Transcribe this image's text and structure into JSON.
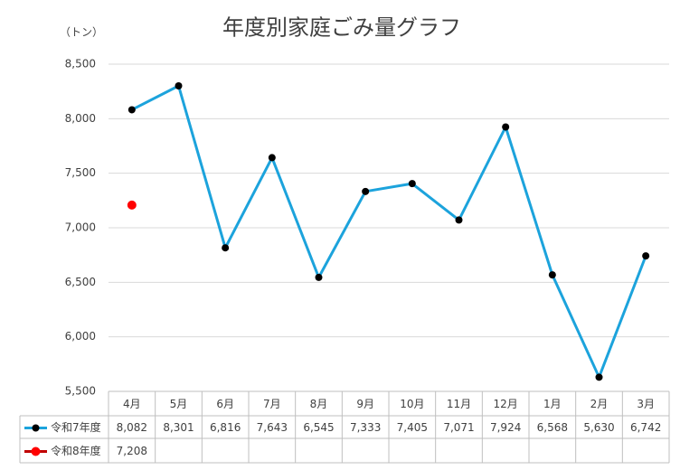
{
  "chart_data": {
    "type": "line",
    "title": "年度別家庭ごみ量グラフ",
    "y_label": "（トン）",
    "categories": [
      "4月",
      "5月",
      "6月",
      "7月",
      "8月",
      "9月",
      "10月",
      "11月",
      "12月",
      "1月",
      "2月",
      "3月"
    ],
    "series": [
      {
        "name": "令和7年度",
        "color": "#1ca3dc",
        "marker_color": "#000000",
        "values": [
          8082,
          8301,
          6816,
          7643,
          6545,
          7333,
          7405,
          7071,
          7924,
          6568,
          5630,
          6742
        ],
        "value_labels": [
          "8,082",
          "8,301",
          "6,816",
          "7,643",
          "6,545",
          "7,333",
          "7,405",
          "7,071",
          "7,924",
          "6,568",
          "5,630",
          "6,742"
        ]
      },
      {
        "name": "令和8年度",
        "color": "#c00000",
        "marker_color": "#ff0000",
        "values": [
          7208,
          null,
          null,
          null,
          null,
          null,
          null,
          null,
          null,
          null,
          null,
          null
        ],
        "value_labels": [
          "7,208",
          null,
          null,
          null,
          null,
          null,
          null,
          null,
          null,
          null,
          null,
          null
        ]
      }
    ],
    "ylim": [
      5500,
      8500
    ],
    "yticks": [
      {
        "value": 5500,
        "label": "5,500"
      },
      {
        "value": 6000,
        "label": "6,000"
      },
      {
        "value": 6500,
        "label": "6,500"
      },
      {
        "value": 7000,
        "label": "7,000"
      },
      {
        "value": 7500,
        "label": "7,500"
      },
      {
        "value": 8000,
        "label": "8,000"
      },
      {
        "value": 8500,
        "label": "8,500"
      }
    ],
    "grid": true,
    "data_table": true
  }
}
